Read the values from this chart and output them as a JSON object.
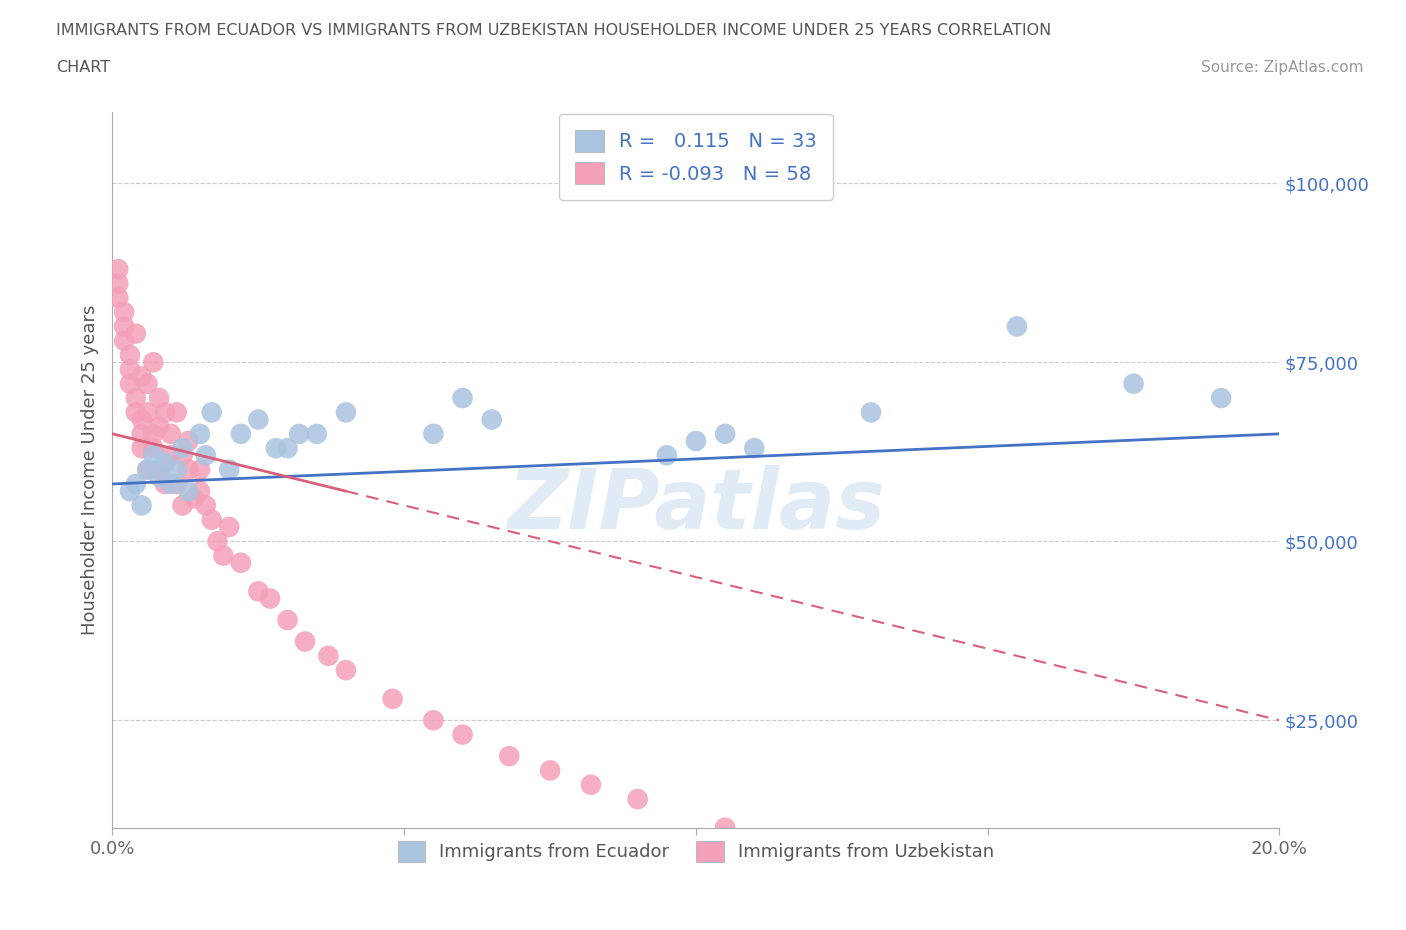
{
  "title_line1": "IMMIGRANTS FROM ECUADOR VS IMMIGRANTS FROM UZBEKISTAN HOUSEHOLDER INCOME UNDER 25 YEARS CORRELATION",
  "title_line2": "CHART",
  "source": "Source: ZipAtlas.com",
  "ylabel": "Householder Income Under 25 years",
  "xlim": [
    0.0,
    0.2
  ],
  "ylim": [
    10000,
    110000
  ],
  "yticks": [
    25000,
    50000,
    75000,
    100000
  ],
  "ytick_labels": [
    "$25,000",
    "$50,000",
    "$75,000",
    "$100,000"
  ],
  "xticks": [
    0.0,
    0.05,
    0.1,
    0.15,
    0.2
  ],
  "xtick_labels": [
    "0.0%",
    "",
    "",
    "",
    "20.0%"
  ],
  "ecuador_color": "#aac4e0",
  "uzbekistan_color": "#f4a0b8",
  "ecuador_line_color": "#4472c4",
  "uzbekistan_line_color": "#d9607a",
  "ecuador_R": 0.115,
  "ecuador_N": 33,
  "uzbekistan_R": -0.093,
  "uzbekistan_N": 58,
  "ecuador_x": [
    0.003,
    0.004,
    0.005,
    0.006,
    0.007,
    0.008,
    0.009,
    0.01,
    0.011,
    0.012,
    0.013,
    0.015,
    0.016,
    0.017,
    0.02,
    0.022,
    0.025,
    0.028,
    0.03,
    0.032,
    0.035,
    0.04,
    0.055,
    0.06,
    0.065,
    0.095,
    0.1,
    0.105,
    0.11,
    0.13,
    0.155,
    0.175,
    0.19
  ],
  "ecuador_y": [
    57000,
    58000,
    55000,
    60000,
    62000,
    59000,
    61000,
    58000,
    60000,
    63000,
    57000,
    65000,
    62000,
    68000,
    60000,
    65000,
    67000,
    63000,
    63000,
    65000,
    65000,
    68000,
    65000,
    70000,
    67000,
    62000,
    64000,
    65000,
    63000,
    68000,
    80000,
    72000,
    70000
  ],
  "uzbekistan_x": [
    0.001,
    0.001,
    0.001,
    0.002,
    0.002,
    0.002,
    0.003,
    0.003,
    0.003,
    0.004,
    0.004,
    0.004,
    0.005,
    0.005,
    0.005,
    0.005,
    0.006,
    0.006,
    0.006,
    0.007,
    0.007,
    0.007,
    0.008,
    0.008,
    0.008,
    0.009,
    0.009,
    0.01,
    0.01,
    0.011,
    0.011,
    0.012,
    0.012,
    0.013,
    0.013,
    0.014,
    0.015,
    0.015,
    0.016,
    0.017,
    0.018,
    0.019,
    0.02,
    0.022,
    0.025,
    0.027,
    0.03,
    0.033,
    0.037,
    0.04,
    0.048,
    0.055,
    0.06,
    0.068,
    0.075,
    0.082,
    0.09,
    0.105
  ],
  "uzbekistan_y": [
    86000,
    88000,
    84000,
    80000,
    82000,
    78000,
    76000,
    74000,
    72000,
    79000,
    68000,
    70000,
    73000,
    65000,
    67000,
    63000,
    72000,
    68000,
    60000,
    75000,
    65000,
    63000,
    70000,
    66000,
    60000,
    68000,
    58000,
    65000,
    62000,
    68000,
    58000,
    62000,
    55000,
    60000,
    64000,
    56000,
    60000,
    57000,
    55000,
    53000,
    50000,
    48000,
    52000,
    47000,
    43000,
    42000,
    39000,
    36000,
    34000,
    32000,
    28000,
    25000,
    23000,
    20000,
    18000,
    16000,
    14000,
    10000
  ],
  "watermark": "ZIPatlas",
  "background_color": "#ffffff",
  "grid_color": "#cccccc"
}
